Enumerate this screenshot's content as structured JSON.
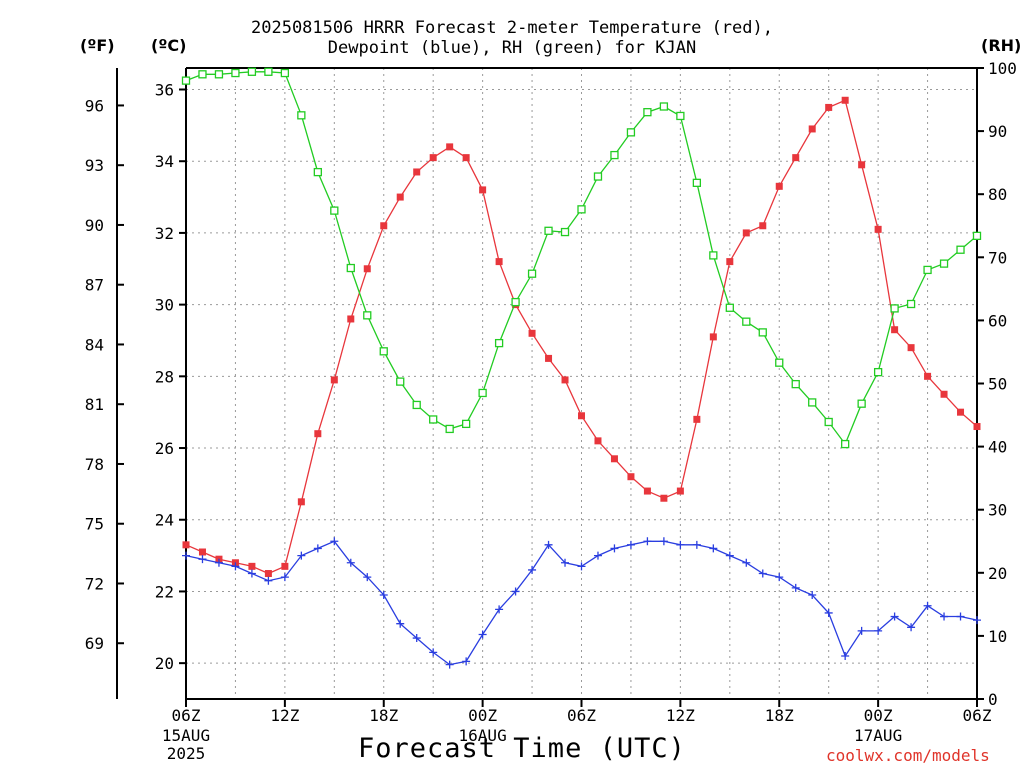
{
  "title": {
    "line1": "2025081506 HRRR Forecast 2-meter Temperature (red),",
    "line2": "Dewpoint (blue), RH (green) for KJAN"
  },
  "unit_labels": {
    "fahrenheit": "(ºF)",
    "celsius": "(ºC)",
    "rh": "(RH)"
  },
  "xaxis_title": "Forecast Time (UTC)",
  "credit": "coolwx.com/models",
  "colors": {
    "temperature": "#e8363c",
    "dewpoint": "#2a3ee0",
    "rh": "#22cc22",
    "grid": "#9a9a9a",
    "axis": "#000000"
  },
  "chart_data": {
    "type": "line",
    "x": [
      0,
      1,
      2,
      3,
      4,
      5,
      6,
      7,
      8,
      9,
      10,
      11,
      12,
      13,
      14,
      15,
      16,
      17,
      18,
      19,
      20,
      21,
      22,
      23,
      24,
      25,
      26,
      27,
      28,
      29,
      30,
      31,
      32,
      33,
      34,
      35,
      36,
      37,
      38,
      39,
      40,
      41,
      42,
      43,
      44,
      45,
      46,
      47,
      48
    ],
    "xlim": [
      0,
      48
    ],
    "x_ticks": [
      {
        "x": 0,
        "label": "06Z",
        "sub": [
          "15AUG",
          "2025"
        ]
      },
      {
        "x": 6,
        "label": "12Z",
        "sub": []
      },
      {
        "x": 12,
        "label": "18Z",
        "sub": []
      },
      {
        "x": 18,
        "label": "00Z",
        "sub": [
          "16AUG"
        ]
      },
      {
        "x": 24,
        "label": "06Z",
        "sub": []
      },
      {
        "x": 30,
        "label": "12Z",
        "sub": []
      },
      {
        "x": 36,
        "label": "18Z",
        "sub": []
      },
      {
        "x": 42,
        "label": "00Z",
        "sub": [
          "17AUG"
        ]
      },
      {
        "x": 48,
        "label": "06Z",
        "sub": []
      }
    ],
    "celsius_axis": {
      "ylim": [
        19,
        36.6
      ],
      "ticks": [
        20,
        22,
        24,
        26,
        28,
        30,
        32,
        34,
        36
      ]
    },
    "fahrenheit_axis": {
      "ticks": [
        69,
        72,
        75,
        78,
        81,
        84,
        87,
        90,
        93,
        96
      ]
    },
    "rh_axis": {
      "ylim": [
        0,
        100
      ],
      "ticks": [
        0,
        10,
        20,
        30,
        40,
        50,
        60,
        70,
        80,
        90,
        100
      ]
    },
    "grid": true,
    "series": [
      {
        "name": "Temperature",
        "axis": "celsius",
        "marker": "filled-square",
        "values": [
          23.3,
          23.1,
          22.9,
          22.8,
          22.7,
          22.5,
          22.7,
          24.5,
          26.4,
          27.9,
          29.6,
          31.0,
          32.2,
          33.0,
          33.7,
          34.1,
          34.4,
          34.1,
          33.2,
          31.2,
          30.0,
          29.2,
          28.5,
          27.9,
          26.9,
          26.2,
          25.7,
          25.2,
          24.8,
          24.6,
          24.8,
          26.8,
          29.1,
          31.2,
          32.0,
          32.2,
          33.3,
          34.1,
          34.9,
          35.5,
          35.7,
          33.9,
          32.1,
          29.3,
          28.8,
          28.0,
          27.5,
          27.0,
          26.6
        ]
      },
      {
        "name": "Dewpoint",
        "axis": "celsius",
        "marker": "plus",
        "values": [
          23.0,
          22.9,
          22.8,
          22.7,
          22.5,
          22.3,
          22.4,
          23.0,
          23.2,
          23.4,
          22.8,
          22.4,
          21.9,
          21.1,
          20.7,
          20.3,
          19.96,
          20.05,
          20.8,
          21.5,
          22.0,
          22.6,
          23.3,
          22.8,
          22.7,
          23.0,
          23.2,
          23.3,
          23.4,
          23.4,
          23.3,
          23.3,
          23.2,
          23.0,
          22.8,
          22.5,
          22.4,
          22.1,
          21.9,
          21.4,
          20.2,
          20.9,
          20.9,
          21.3,
          21.0,
          21.6,
          21.3,
          21.3,
          21.2
        ]
      },
      {
        "name": "RH",
        "axis": "rh",
        "marker": "open-square",
        "values": [
          98,
          99,
          99,
          99.2,
          99.4,
          99.4,
          99.2,
          92.5,
          83.5,
          77.4,
          68.3,
          60.8,
          55.1,
          50.3,
          46.6,
          44.3,
          42.8,
          43.6,
          48.5,
          56.4,
          62.9,
          67.4,
          74.2,
          74.0,
          77.6,
          82.8,
          86.2,
          89.8,
          93.0,
          93.9,
          92.4,
          81.8,
          70.3,
          62.0,
          59.8,
          58.1,
          53.3,
          49.9,
          47.0,
          43.9,
          40.4,
          46.8,
          51.8,
          61.9,
          62.6,
          68.0,
          69.0,
          71.2,
          73.4
        ]
      }
    ]
  }
}
